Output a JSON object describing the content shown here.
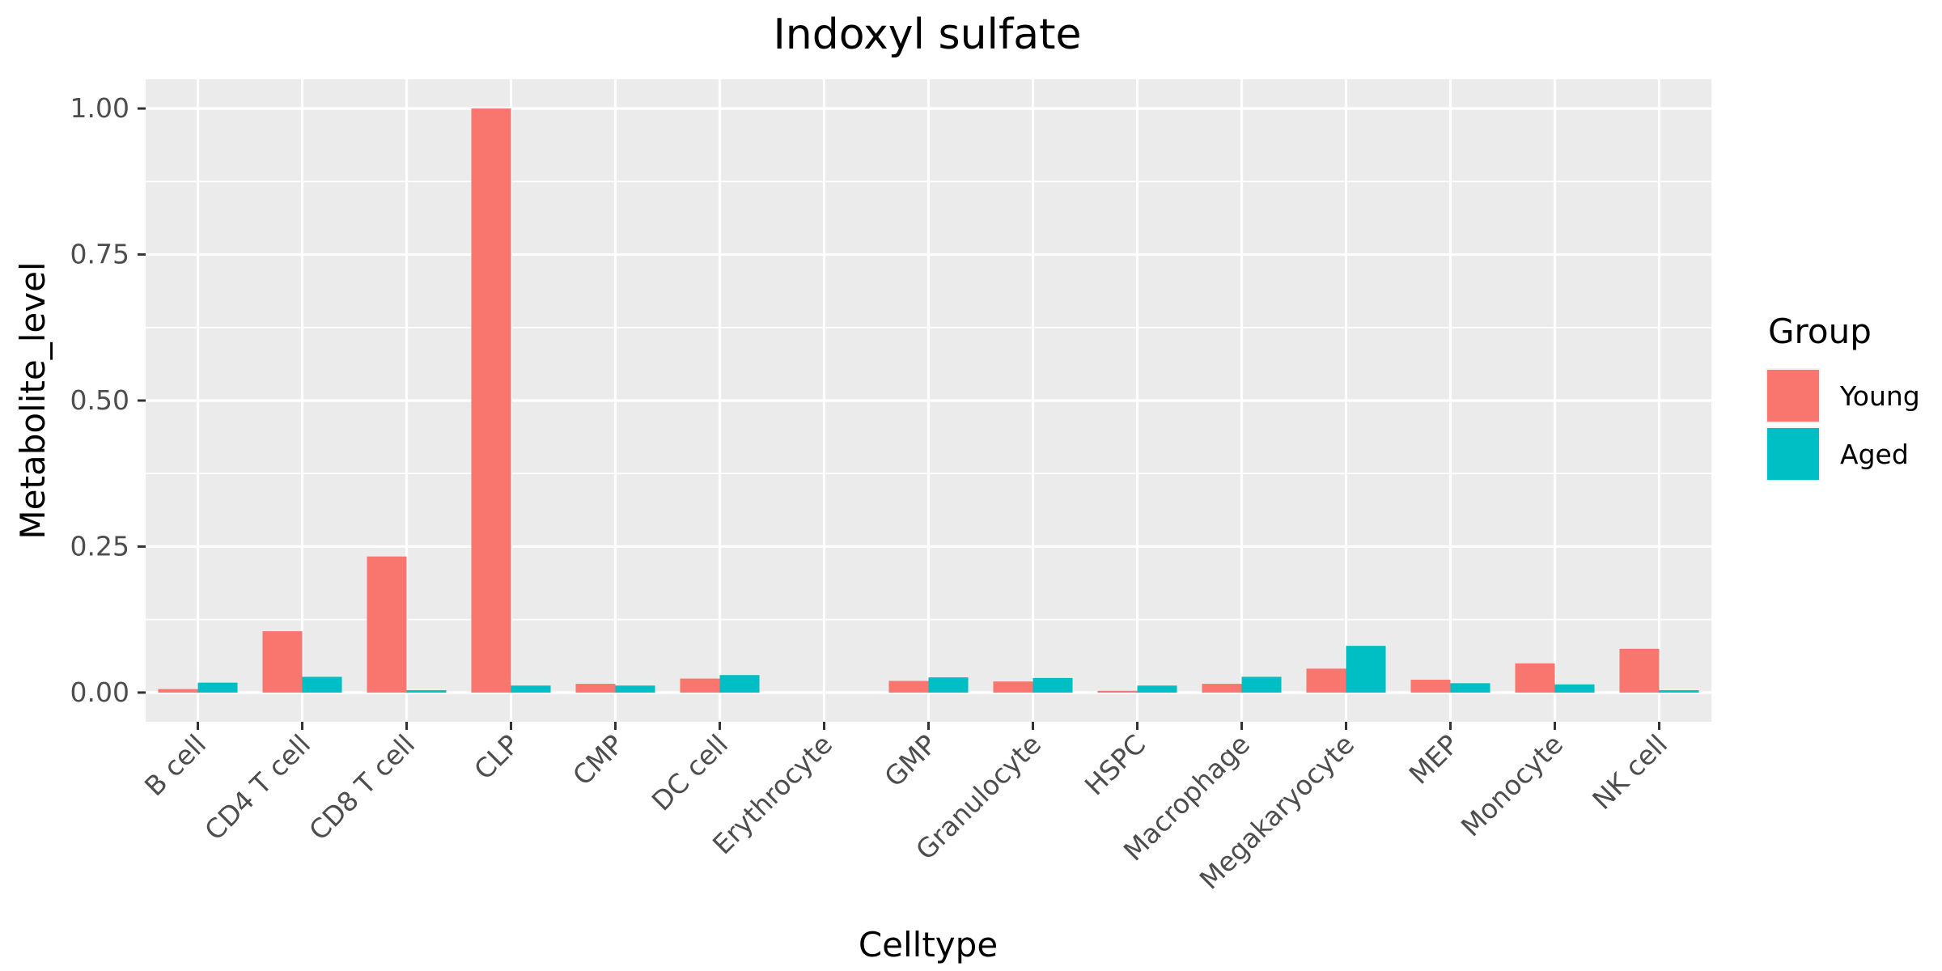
{
  "chart_data": {
    "type": "bar",
    "title": "Indoxyl sulfate",
    "xlabel": "Celltype",
    "ylabel": "Metabolite_level",
    "ylim": [
      -0.05,
      1.05
    ],
    "yticks": [
      "0.00",
      "0.25",
      "0.50",
      "0.75",
      "1.00"
    ],
    "grid": true,
    "legend": {
      "title": "Group",
      "position": "right"
    },
    "categories": [
      "B cell",
      "CD4 T cell",
      "CD8 T cell",
      "CLP",
      "CMP",
      "DC cell",
      "Erythrocyte",
      "GMP",
      "Granulocyte",
      "HSPC",
      "Macrophage",
      "Megakaryocyte",
      "MEP",
      "Monocyte",
      "NK cell"
    ],
    "series": [
      {
        "name": "Young",
        "color": "#F8766D",
        "values": [
          0.006,
          0.105,
          0.233,
          1.0,
          0.015,
          0.024,
          0.0,
          0.02,
          0.019,
          0.003,
          0.015,
          0.041,
          0.022,
          0.05,
          0.075
        ]
      },
      {
        "name": "Aged",
        "color": "#00BFC4",
        "values": [
          0.017,
          0.027,
          0.004,
          0.012,
          0.012,
          0.03,
          0.0,
          0.026,
          0.025,
          0.012,
          0.027,
          0.08,
          0.016,
          0.014,
          0.004
        ]
      }
    ]
  }
}
